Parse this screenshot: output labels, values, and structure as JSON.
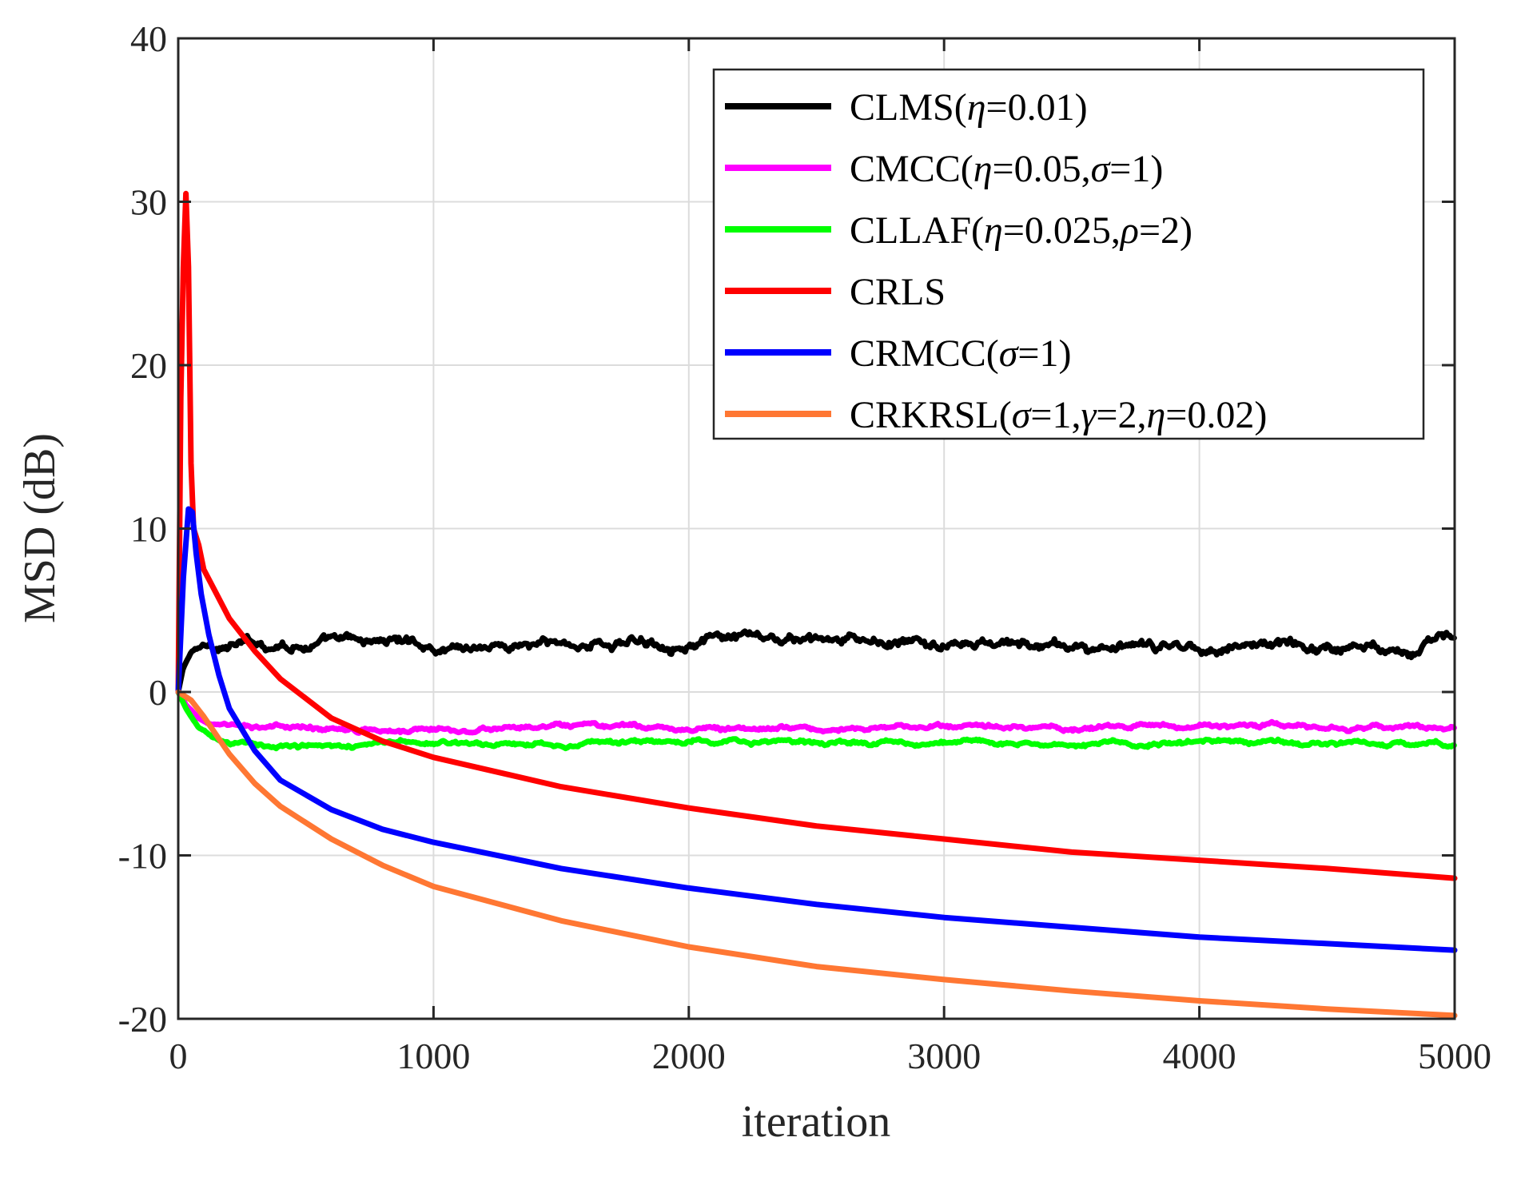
{
  "chart_data": {
    "type": "line",
    "xlabel": "iteration",
    "ylabel": "MSD (dB)",
    "xlim": [
      0,
      5000
    ],
    "ylim": [
      -20,
      40
    ],
    "xticks": [
      0,
      1000,
      2000,
      3000,
      4000,
      5000
    ],
    "yticks": [
      -20,
      -10,
      0,
      10,
      20,
      30,
      40
    ],
    "xtick_labels": [
      "0",
      "1000",
      "2000",
      "3000",
      "4000",
      "5000"
    ],
    "ytick_labels": [
      "-20",
      "-10",
      "0",
      "10",
      "20",
      "30",
      "40"
    ],
    "grid": true,
    "legend_position": "top-right",
    "series": [
      {
        "key": "clms",
        "name": "CLMS(η=0.01)",
        "legend_parts": [
          [
            "CLMS(",
            false
          ],
          [
            "η",
            true
          ],
          [
            "=0.01)",
            false
          ]
        ],
        "color": "#000000",
        "noise": 0.6,
        "x": [
          0,
          20,
          50,
          100,
          200,
          400,
          700,
          900,
          1000,
          1200,
          1500,
          1700,
          2000,
          2300,
          2500,
          2800,
          3000,
          3200,
          3500,
          3800,
          4000,
          4200,
          4500,
          4800,
          5000
        ],
        "y": [
          0,
          1.5,
          2.4,
          2.8,
          2.9,
          3.0,
          3.0,
          3.2,
          2.8,
          2.9,
          2.9,
          3.0,
          3.2,
          3.1,
          3.0,
          2.9,
          2.8,
          2.9,
          2.7,
          2.6,
          2.8,
          3.0,
          2.8,
          2.9,
          3.2
        ]
      },
      {
        "key": "cmcc",
        "name": "CMCC(η=0.05,σ=1)",
        "legend_parts": [
          [
            "CMCC(",
            false
          ],
          [
            "η",
            true
          ],
          [
            "=0.05,",
            false
          ],
          [
            "σ",
            true
          ],
          [
            "=1)",
            false
          ]
        ],
        "color": "#ff00ff",
        "noise": 0.25,
        "x": [
          0,
          30,
          80,
          150,
          250,
          500,
          1000,
          2000,
          3000,
          4000,
          5000
        ],
        "y": [
          0,
          -0.8,
          -1.6,
          -2.0,
          -2.2,
          -2.2,
          -2.2,
          -2.2,
          -2.2,
          -2.1,
          -2.2
        ]
      },
      {
        "key": "cllaf",
        "name": "CLLAF(η=0.025,ρ=2)",
        "legend_parts": [
          [
            "CLLAF(",
            false
          ],
          [
            "η",
            true
          ],
          [
            "=0.025,",
            false
          ],
          [
            "ρ",
            true
          ],
          [
            "=2)",
            false
          ]
        ],
        "color": "#00ff00",
        "noise": 0.25,
        "x": [
          0,
          30,
          80,
          150,
          250,
          500,
          1000,
          2000,
          3000,
          4000,
          5000
        ],
        "y": [
          0,
          -1.0,
          -2.2,
          -2.9,
          -3.2,
          -3.2,
          -3.1,
          -3.1,
          -3.1,
          -3.1,
          -3.2
        ]
      },
      {
        "key": "crls",
        "name": "CRLS",
        "legend_parts": [
          [
            "CRLS",
            false
          ]
        ],
        "color": "#ff0000",
        "noise": 0,
        "x": [
          0,
          10,
          20,
          30,
          40,
          50,
          60,
          80,
          100,
          150,
          200,
          300,
          400,
          600,
          800,
          1000,
          1500,
          2000,
          2500,
          3000,
          3500,
          4000,
          4500,
          5000
        ],
        "y": [
          0,
          18,
          26,
          30.5,
          26,
          14,
          10,
          9,
          7.5,
          6,
          4.5,
          2.5,
          0.8,
          -1.6,
          -3.0,
          -4.0,
          -5.8,
          -7.1,
          -8.2,
          -9.0,
          -9.8,
          -10.3,
          -10.8,
          -11.4
        ]
      },
      {
        "key": "crmcc",
        "name": "CRMCC(σ=1)",
        "legend_parts": [
          [
            "CRMCC(",
            false
          ],
          [
            "σ",
            true
          ],
          [
            "=1)",
            false
          ]
        ],
        "color": "#0000ff",
        "noise": 0,
        "x": [
          0,
          20,
          40,
          55,
          70,
          90,
          120,
          160,
          200,
          300,
          400,
          600,
          800,
          1000,
          1500,
          2000,
          2500,
          3000,
          3500,
          4000,
          4500,
          5000
        ],
        "y": [
          0,
          7,
          11.2,
          11.0,
          8.5,
          6,
          3.5,
          1.0,
          -1.0,
          -3.6,
          -5.4,
          -7.2,
          -8.4,
          -9.2,
          -10.8,
          -12.0,
          -13.0,
          -13.8,
          -14.4,
          -15.0,
          -15.4,
          -15.8
        ]
      },
      {
        "key": "crkrsl",
        "name": "CRKRSL(σ=1,γ=2,η=0.02)",
        "legend_parts": [
          [
            "CRKRSL(",
            false
          ],
          [
            "σ",
            true
          ],
          [
            "=1,",
            false
          ],
          [
            "γ",
            true
          ],
          [
            "=2,",
            false
          ],
          [
            "η",
            true
          ],
          [
            "=0.02)",
            false
          ]
        ],
        "color": "#ff7733",
        "noise": 0,
        "x": [
          0,
          50,
          100,
          200,
          300,
          400,
          600,
          800,
          1000,
          1500,
          2000,
          2500,
          3000,
          3500,
          4000,
          4500,
          5000
        ],
        "y": [
          0,
          -0.5,
          -1.5,
          -3.8,
          -5.6,
          -7.0,
          -9.0,
          -10.6,
          -11.9,
          -14.0,
          -15.6,
          -16.8,
          -17.6,
          -18.3,
          -18.9,
          -19.4,
          -19.8
        ]
      }
    ]
  }
}
